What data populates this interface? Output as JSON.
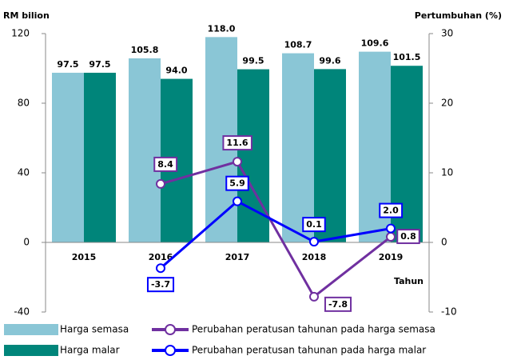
{
  "chart_data": {
    "type": "bar",
    "y_label": "RM bilion",
    "y2_label": "Pertumbuhan (%)",
    "x_label": "Tahun",
    "categories": [
      "2015",
      "2016",
      "2017",
      "2018",
      "2019"
    ],
    "ylim": [
      -40,
      120
    ],
    "yticks": [
      -40,
      0,
      40,
      80,
      120
    ],
    "y2lim": [
      -10,
      30
    ],
    "y2ticks": [
      -10,
      0,
      10,
      20,
      30
    ],
    "series": [
      {
        "name": "Harga semasa",
        "type": "bar",
        "color": "#8ac6d6",
        "values": [
          97.5,
          105.8,
          118.0,
          108.7,
          109.6
        ],
        "value_labels": [
          "97.5",
          "105.8",
          "118.0",
          "108.7",
          "109.6"
        ]
      },
      {
        "name": "Harga malar",
        "type": "bar",
        "color": "#00857a",
        "values": [
          97.5,
          94.0,
          99.5,
          99.6,
          101.5
        ],
        "value_labels": [
          "97.5",
          "94.0",
          "99.5",
          "99.6",
          "101.5"
        ]
      },
      {
        "name": "Perubahan peratusan tahunan pada harga semasa",
        "type": "line",
        "axis": "y2",
        "color": "#7030a0",
        "values": [
          null,
          8.4,
          11.6,
          -7.8,
          0.8
        ],
        "value_labels": [
          null,
          "8.4",
          "11.6",
          "-7.8",
          "0.8"
        ]
      },
      {
        "name": "Perubahan peratusan tahunan pada harga malar",
        "type": "line",
        "axis": "y2",
        "color": "#0000ff",
        "values": [
          null,
          -3.7,
          5.9,
          0.1,
          2.0
        ],
        "value_labels": [
          null,
          "-3.7",
          "5.9",
          "0.1",
          "2.0"
        ]
      }
    ]
  }
}
